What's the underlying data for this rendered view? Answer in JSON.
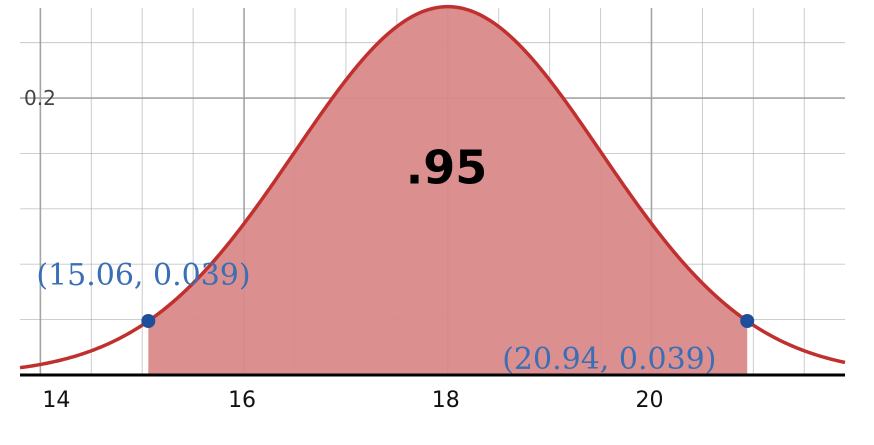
{
  "chart_data": {
    "type": "area",
    "distribution": {
      "mean": 18,
      "sd": 1.5
    },
    "xlim": [
      13.8,
      21.9
    ],
    "ylim": [
      0,
      0.265
    ],
    "grid": true,
    "x_ticks": [
      {
        "value": 14,
        "label": "14"
      },
      {
        "value": 16,
        "label": "16"
      },
      {
        "value": 18,
        "label": "18"
      },
      {
        "value": 20,
        "label": "20"
      }
    ],
    "y_ticks": [
      {
        "value": 0.2,
        "label": "0.2"
      }
    ],
    "shaded_region": {
      "x_from": 15.06,
      "x_to": 20.94,
      "label": ".95"
    },
    "points": [
      {
        "x": 15.06,
        "y": 0.039,
        "label": "(15.06, 0.039)"
      },
      {
        "x": 20.94,
        "y": 0.039,
        "label": "(20.94, 0.039)"
      }
    ],
    "colors": {
      "curve": "#c0302f",
      "fill": "#d98a89",
      "point": "#1f4e9c",
      "point_label": "#3a6eb5",
      "grid": "#9a9a9a",
      "axis": "#000000"
    }
  }
}
